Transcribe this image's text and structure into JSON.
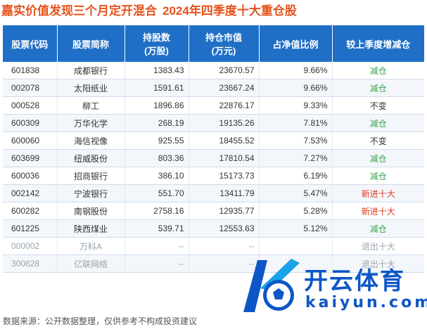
{
  "header": {
    "title": "嘉实价值发现三个月定开混合",
    "subtitle": "2024年四季度十大重仓股"
  },
  "table": {
    "columns": [
      "股票代码",
      "股票简称",
      "持股数\n(万股)",
      "持仓市值\n(万元)",
      "占净值比例",
      "较上季度增减仓"
    ],
    "rows": [
      {
        "code": "601838",
        "name": "成都银行",
        "shares": "1383.43",
        "value": "23670.57",
        "ratio": "9.66%",
        "change": "减仓",
        "change_color": "green"
      },
      {
        "code": "002078",
        "name": "太阳纸业",
        "shares": "1591.61",
        "value": "23667.24",
        "ratio": "9.66%",
        "change": "减仓",
        "change_color": "green"
      },
      {
        "code": "000528",
        "name": "柳工",
        "shares": "1896.86",
        "value": "22876.17",
        "ratio": "9.33%",
        "change": "不变",
        "change_color": "black"
      },
      {
        "code": "600309",
        "name": "万华化学",
        "shares": "268.19",
        "value": "19135.26",
        "ratio": "7.81%",
        "change": "减仓",
        "change_color": "green"
      },
      {
        "code": "600060",
        "name": "海信视像",
        "shares": "925.55",
        "value": "18455.52",
        "ratio": "7.53%",
        "change": "不变",
        "change_color": "black"
      },
      {
        "code": "603699",
        "name": "纽威股份",
        "shares": "803.36",
        "value": "17810.54",
        "ratio": "7.27%",
        "change": "减仓",
        "change_color": "green"
      },
      {
        "code": "600036",
        "name": "招商银行",
        "shares": "386.10",
        "value": "15173.73",
        "ratio": "6.19%",
        "change": "减仓",
        "change_color": "green"
      },
      {
        "code": "002142",
        "name": "宁波银行",
        "shares": "551.70",
        "value": "13411.79",
        "ratio": "5.47%",
        "change": "新进十大",
        "change_color": "red"
      },
      {
        "code": "600282",
        "name": "南钢股份",
        "shares": "2758.16",
        "value": "12935.77",
        "ratio": "5.28%",
        "change": "新进十大",
        "change_color": "red"
      },
      {
        "code": "601225",
        "name": "陕西煤业",
        "shares": "539.71",
        "value": "12553.63",
        "ratio": "5.12%",
        "change": "减仓",
        "change_color": "green"
      }
    ],
    "exited_rows": [
      {
        "code": "000002",
        "name": "万科A",
        "shares": "--",
        "value": "--",
        "ratio": "",
        "change": "退出十大"
      },
      {
        "code": "300628",
        "name": "亿联网络",
        "shares": "--",
        "value": "--",
        "ratio": "",
        "change": "退出十大"
      }
    ]
  },
  "footer": {
    "source": "数据来源：公开数据整理，仅供参考不构成投资建议"
  },
  "logo": {
    "text": "开云体育",
    "subtext": "kaiyun.com",
    "colors": {
      "primary": "#0d56c7",
      "accent": "#1aa3e8"
    }
  },
  "colors": {
    "title": "#e5531d",
    "header_bg": "#1f6fc6",
    "decrease": "#3aa24a",
    "new_entry": "#e03a22"
  }
}
